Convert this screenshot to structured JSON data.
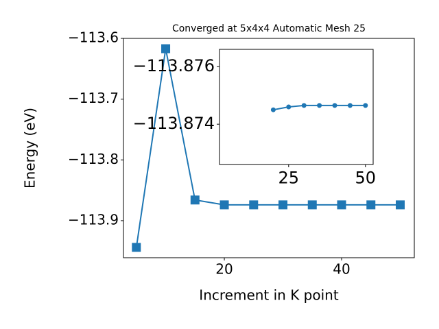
{
  "chart_data": [
    {
      "type": "line",
      "title": "Converged at 5x4x4 Automatic Mesh 25",
      "xlabel": "Increment in K point",
      "ylabel": "Energy (eV)",
      "marker": "square",
      "x": [
        5,
        10,
        15,
        20,
        25,
        30,
        35,
        40,
        45,
        50
      ],
      "series": [
        {
          "color": "#1f77b4",
          "values": [
            -113.944,
            -113.617,
            -113.866,
            -113.874,
            -113.874,
            -113.874,
            -113.874,
            -113.874,
            -113.874,
            -113.874
          ]
        }
      ],
      "xlim": [
        2.8,
        52.4
      ],
      "ylim": [
        -113.961,
        -113.6
      ],
      "xticks": [
        20,
        40
      ],
      "yticks": [
        {
          "value": -113.6,
          "label": "−113.6"
        },
        {
          "value": -113.7,
          "label": "−113.7"
        },
        {
          "value": -113.8,
          "label": "−113.8"
        },
        {
          "value": -113.9,
          "label": "−113.9"
        }
      ]
    },
    {
      "type": "line",
      "marker": "circle",
      "x": [
        20,
        25,
        30,
        35,
        40,
        45,
        50
      ],
      "series": [
        {
          "color": "#1f77b4",
          "values": [
            -113.8745,
            -113.8746,
            -113.87465,
            -113.87465,
            -113.87465,
            -113.87465,
            -113.87465
          ]
        }
      ],
      "xlim": [
        2.5,
        52.5
      ],
      "ylim": [
        -113.8726,
        -113.8766
      ],
      "xticks": [
        25,
        50
      ],
      "yticks": [
        {
          "value": -113.876,
          "label": "−113.876"
        },
        {
          "value": -113.874,
          "label": "−113.874"
        }
      ]
    }
  ]
}
